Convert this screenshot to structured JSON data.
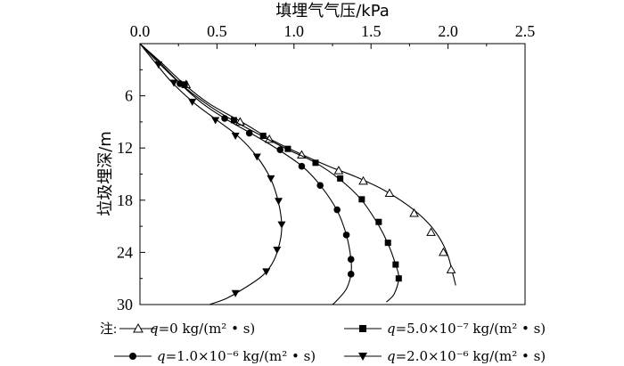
{
  "chart_data": {
    "type": "line",
    "title": "",
    "xlabel": "填埋气气压/kPa",
    "ylabel": "垃圾埋深/m",
    "xlim": [
      0.0,
      2.5
    ],
    "ylim": [
      0,
      30
    ],
    "x_ticks": [
      "0.0",
      "0.5",
      "1.0",
      "1.5",
      "2.0",
      "2.5"
    ],
    "y_ticks": [
      "6",
      "12",
      "18",
      "24",
      "30"
    ],
    "x_axis_position": "top",
    "y_axis_inverted": true,
    "grid": false,
    "legend_note": "注:",
    "series": [
      {
        "name": "q=0 kg/(m²·s)",
        "label_var": "q",
        "label_rest": "=0 kg/(m² • s)",
        "marker": "triangle-open",
        "curve": [
          [
            0,
            0
          ],
          [
            0.14,
            2.2
          ],
          [
            0.29,
            4.7
          ],
          [
            0.45,
            6.9
          ],
          [
            0.66,
            9.0
          ],
          [
            0.87,
            11.2
          ],
          [
            1.07,
            12.9
          ],
          [
            1.24,
            14.2
          ],
          [
            1.4,
            15.3
          ],
          [
            1.58,
            16.8
          ],
          [
            1.74,
            18.6
          ],
          [
            1.87,
            20.6
          ],
          [
            1.95,
            22.5
          ],
          [
            2.0,
            24.4
          ],
          [
            2.03,
            26.4
          ],
          [
            2.05,
            27.8
          ]
        ],
        "markers": [
          [
            0.3,
            4.7
          ],
          [
            0.65,
            9.0
          ],
          [
            0.84,
            11.0
          ],
          [
            1.05,
            12.8
          ],
          [
            1.29,
            14.6
          ],
          [
            1.45,
            15.8
          ],
          [
            1.62,
            17.2
          ],
          [
            1.78,
            19.5
          ],
          [
            1.89,
            21.7
          ],
          [
            1.97,
            24.0
          ],
          [
            2.02,
            26.0
          ]
        ]
      },
      {
        "name": "q=5.0×10⁻⁷ kg/(m²·s)",
        "label_var": "q",
        "label_rest": "=5.0×10⁻⁷ kg/(m² • s)",
        "marker": "square",
        "curve": [
          [
            0,
            0
          ],
          [
            0.13,
            2.2
          ],
          [
            0.27,
            4.7
          ],
          [
            0.43,
            6.9
          ],
          [
            0.6,
            8.8
          ],
          [
            0.78,
            10.5
          ],
          [
            0.95,
            12.1
          ],
          [
            1.13,
            13.6
          ],
          [
            1.29,
            15.5
          ],
          [
            1.43,
            17.8
          ],
          [
            1.54,
            20.6
          ],
          [
            1.61,
            23.0
          ],
          [
            1.66,
            25.4
          ],
          [
            1.68,
            27.0
          ],
          [
            1.65,
            28.8
          ],
          [
            1.6,
            29.7
          ]
        ],
        "markers": [
          [
            0.29,
            4.7
          ],
          [
            0.61,
            8.8
          ],
          [
            0.8,
            10.6
          ],
          [
            0.96,
            12.1
          ],
          [
            1.14,
            13.7
          ],
          [
            1.3,
            15.5
          ],
          [
            1.44,
            17.9
          ],
          [
            1.55,
            20.5
          ],
          [
            1.61,
            22.9
          ],
          [
            1.66,
            25.4
          ],
          [
            1.68,
            27.0
          ]
        ]
      },
      {
        "name": "q=1.0×10⁻⁶ kg/(m²·s)",
        "label_var": "q",
        "label_rest": "=1.0×10⁻⁶ kg/(m² • s)",
        "marker": "circle",
        "curve": [
          [
            0,
            0
          ],
          [
            0.12,
            2.2
          ],
          [
            0.26,
            4.6
          ],
          [
            0.4,
            6.8
          ],
          [
            0.56,
            8.7
          ],
          [
            0.73,
            10.4
          ],
          [
            0.9,
            12.2
          ],
          [
            1.06,
            14.2
          ],
          [
            1.18,
            16.5
          ],
          [
            1.28,
            19.2
          ],
          [
            1.34,
            22.0
          ],
          [
            1.37,
            24.8
          ],
          [
            1.37,
            26.5
          ],
          [
            1.34,
            28.2
          ],
          [
            1.28,
            29.5
          ],
          [
            1.25,
            30.0
          ]
        ],
        "markers": [
          [
            0.26,
            4.6
          ],
          [
            0.55,
            8.6
          ],
          [
            0.71,
            10.3
          ],
          [
            0.91,
            12.2
          ],
          [
            1.05,
            14.1
          ],
          [
            1.17,
            16.3
          ],
          [
            1.28,
            19.1
          ],
          [
            1.34,
            22.0
          ],
          [
            1.37,
            24.8
          ],
          [
            1.37,
            26.5
          ]
        ]
      },
      {
        "name": "q=2.0×10⁻⁶ kg/(m²·s)",
        "label_var": "q",
        "label_rest": "=2.0×10⁻⁶ kg/(m² • s)",
        "marker": "triangle-down",
        "curve": [
          [
            0,
            0
          ],
          [
            0.1,
            2.2
          ],
          [
            0.21,
            4.5
          ],
          [
            0.35,
            6.8
          ],
          [
            0.5,
            8.8
          ],
          [
            0.64,
            10.7
          ],
          [
            0.76,
            13.0
          ],
          [
            0.85,
            15.6
          ],
          [
            0.9,
            18.3
          ],
          [
            0.92,
            20.8
          ],
          [
            0.91,
            22.7
          ],
          [
            0.87,
            24.9
          ],
          [
            0.8,
            26.6
          ],
          [
            0.68,
            28.1
          ],
          [
            0.56,
            29.3
          ],
          [
            0.45,
            30.0
          ]
        ],
        "markers": [
          [
            0.12,
            2.4
          ],
          [
            0.22,
            4.5
          ],
          [
            0.34,
            6.7
          ],
          [
            0.49,
            8.8
          ],
          [
            0.62,
            10.6
          ],
          [
            0.76,
            13.0
          ],
          [
            0.85,
            15.5
          ],
          [
            0.9,
            18.1
          ],
          [
            0.92,
            20.8
          ],
          [
            0.89,
            23.7
          ],
          [
            0.82,
            26.2
          ],
          [
            0.62,
            28.7
          ]
        ]
      }
    ]
  }
}
